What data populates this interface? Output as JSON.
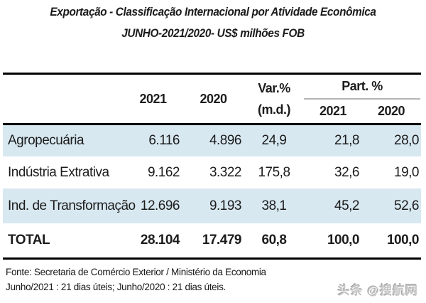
{
  "title": {
    "line1": "Exportação - Classificação Internacional por Atividade Econômica",
    "line2": "JUNHO-2021/2020- US$ milhões FOB"
  },
  "table": {
    "header": {
      "col_2021": "2021",
      "col_2020": "2020",
      "var_line1": "Var.%",
      "var_line2": "(m.d.)",
      "part_title": "Part. %",
      "part_2021": "2021",
      "part_2020": "2020"
    },
    "rows": [
      {
        "label": "Agropecuária",
        "v2021": "6.116",
        "v2020": "4.896",
        "var": "24,9",
        "p2021": "21,8",
        "p2020": "28,0"
      },
      {
        "label": "Indústria Extrativa",
        "v2021": "9.162",
        "v2020": "3.322",
        "var": "175,8",
        "p2021": "32,6",
        "p2020": "19,0"
      },
      {
        "label": "Ind. de Transformação",
        "v2021": "12.696",
        "v2020": "9.193",
        "var": "38,1",
        "p2021": "45,2",
        "p2020": "52,6"
      }
    ],
    "total": {
      "label": "TOTAL",
      "v2021": "28.104",
      "v2020": "17.479",
      "var": "60,8",
      "p2021": "100,0",
      "p2020": "100,0"
    }
  },
  "chart_data": {
    "type": "table",
    "title": "Exportação - Classificação Internacional por Atividade Econômica, JUNHO-2021/2020- US$ milhões FOB",
    "columns": [
      "",
      "2021",
      "2020",
      "Var.% (m.d.)",
      "Part. % 2021",
      "Part. % 2020"
    ],
    "rows": [
      [
        "Agropecuária",
        6116,
        4896,
        24.9,
        21.8,
        28.0
      ],
      [
        "Indústria Extrativa",
        9162,
        3322,
        175.8,
        32.6,
        19.0
      ],
      [
        "Ind. de Transformação",
        12696,
        9193,
        38.1,
        45.2,
        52.6
      ],
      [
        "TOTAL",
        28104,
        17479,
        60.8,
        100.0,
        100.0
      ]
    ]
  },
  "footer": {
    "source": "Fonte: Secretaria de Comércio Exterior / Ministério da Economia",
    "note": "Junho/2021 : 21 dias úteis; Junho/2020 : 21 dias úteis."
  },
  "watermark": "头条 @搜航网",
  "colors": {
    "row_highlight": "#d8e8f1",
    "border": "#000000",
    "part_underline": "#b5b5b5",
    "text": "#1c1c1c",
    "watermark": "#c7c7c7"
  }
}
